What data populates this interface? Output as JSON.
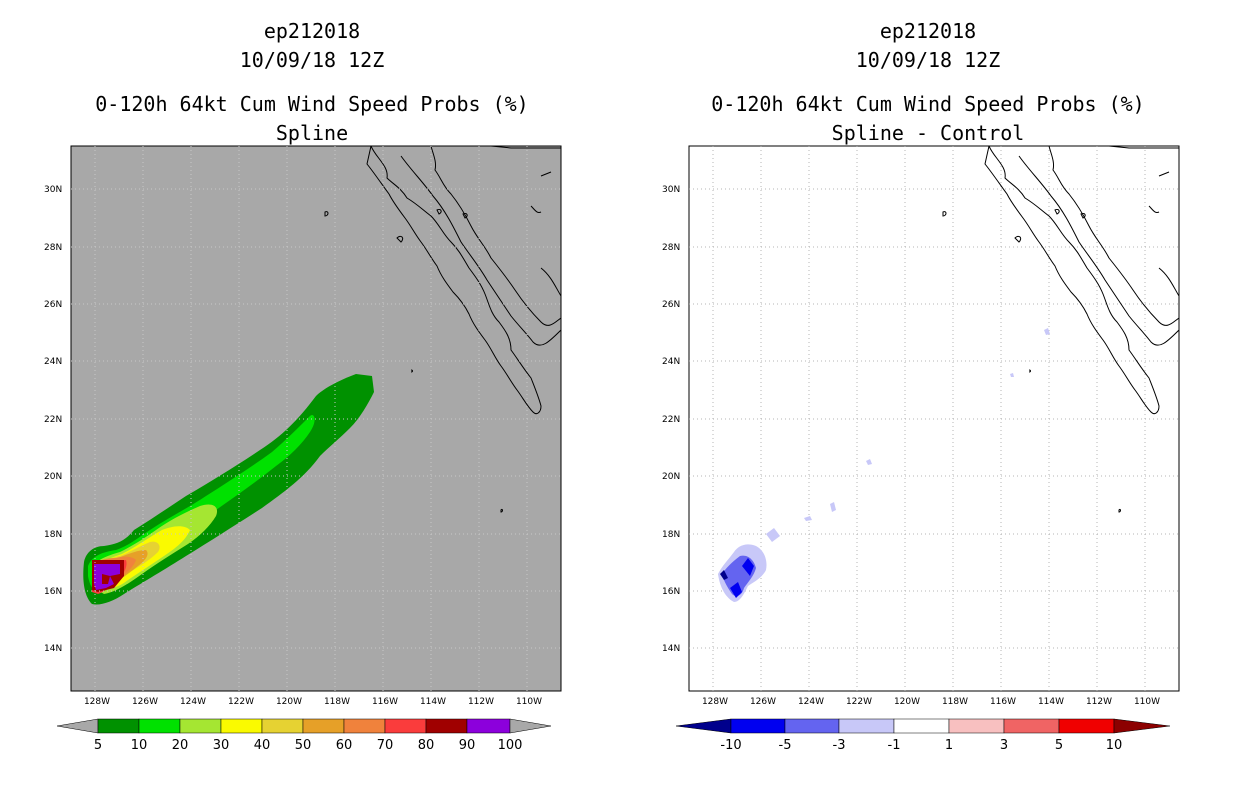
{
  "left_panel": {
    "storm_id": "ep212018",
    "datetime": "10/09/18 12Z",
    "product": "0-120h 64kt Cum Wind Speed Probs (%)",
    "subtitle": "Spline",
    "background_color": "#a8a8a8",
    "lat_labels": [
      "30N",
      "28N",
      "26N",
      "24N",
      "22N",
      "20N",
      "18N",
      "16N",
      "14N"
    ],
    "lon_labels": [
      "128W",
      "126W",
      "124W",
      "122W",
      "120W",
      "118W",
      "116W",
      "114W",
      "112W",
      "110W"
    ],
    "colorbar": {
      "labels": [
        "5",
        "10",
        "20",
        "30",
        "40",
        "50",
        "60",
        "70",
        "80",
        "90",
        "100"
      ],
      "colors": [
        "#a8a8a8",
        "#009100",
        "#00e100",
        "#a5e632",
        "#fafa00",
        "#e6d232",
        "#e6a028",
        "#f0823c",
        "#fa3c3c",
        "#a00000",
        "#8c00dc",
        "#a8a8a8"
      ]
    }
  },
  "right_panel": {
    "storm_id": "ep212018",
    "datetime": "10/09/18 12Z",
    "product": "0-120h 64kt Cum Wind Speed Probs (%)",
    "subtitle": "Spline - Control",
    "background_color": "#ffffff",
    "lat_labels": [
      "30N",
      "28N",
      "26N",
      "24N",
      "22N",
      "20N",
      "18N",
      "16N",
      "14N"
    ],
    "lon_labels": [
      "128W",
      "126W",
      "124W",
      "122W",
      "120W",
      "118W",
      "116W",
      "114W",
      "112W",
      "110W"
    ],
    "colorbar": {
      "labels": [
        "-10",
        "-5",
        "-3",
        "-1",
        "1",
        "3",
        "5",
        "10"
      ],
      "colors": [
        "#00008c",
        "#0000f0",
        "#6464f0",
        "#c8c8f8",
        "#ffffff",
        "#f8c0c0",
        "#f06464",
        "#f00000",
        "#8c0000"
      ]
    }
  }
}
